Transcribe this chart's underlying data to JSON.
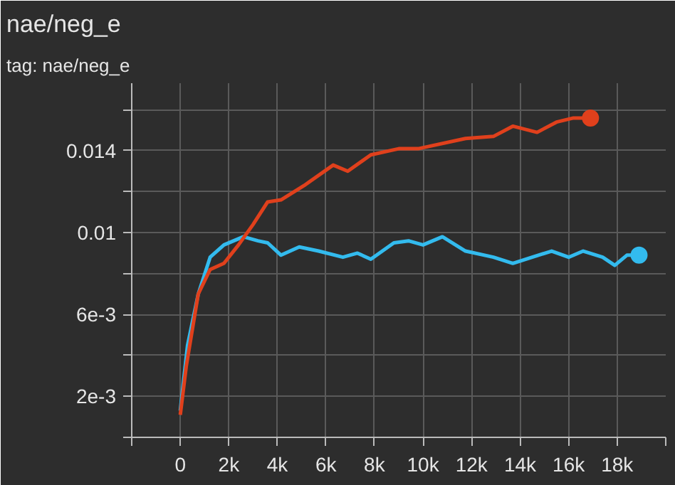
{
  "chart_data": {
    "type": "line",
    "title": "nae/neg_e",
    "subtitle": "tag: nae/neg_e",
    "xlim": [
      -2000,
      20000
    ],
    "xticks": [
      {
        "value": -2000,
        "label": null
      },
      {
        "value": 0,
        "label": "0"
      },
      {
        "value": 2000,
        "label": "2k"
      },
      {
        "value": 4000,
        "label": "4k"
      },
      {
        "value": 6000,
        "label": "6k"
      },
      {
        "value": 8000,
        "label": "8k"
      },
      {
        "value": 10000,
        "label": "10k"
      },
      {
        "value": 12000,
        "label": "12k"
      },
      {
        "value": 14000,
        "label": "14k"
      },
      {
        "value": 16000,
        "label": "16k"
      },
      {
        "value": 18000,
        "label": "18k"
      },
      {
        "value": 20000,
        "label": null
      }
    ],
    "ylim": [
      0,
      0.0173
    ],
    "yticks": [
      {
        "value": 0,
        "label": null
      },
      {
        "value": 0.002,
        "label": "2e-3"
      },
      {
        "value": 0.004,
        "label": null
      },
      {
        "value": 0.006,
        "label": "6e-3"
      },
      {
        "value": 0.008,
        "label": null
      },
      {
        "value": 0.01,
        "label": "0.01"
      },
      {
        "value": 0.012,
        "label": null
      },
      {
        "value": 0.014,
        "label": "0.014"
      },
      {
        "value": 0.016,
        "label": null
      }
    ],
    "grid": true,
    "marker": "none",
    "line_style": "solid",
    "series": [
      {
        "color": "#33bbee",
        "x": [
          0,
          300,
          740,
          1230,
          1800,
          2600,
          3200,
          3600,
          4150,
          4900,
          5700,
          6700,
          7300,
          7850,
          8800,
          9400,
          10000,
          10800,
          11750,
          12900,
          13700,
          14500,
          15300,
          16000,
          16600,
          17400,
          17900,
          18400,
          18900
        ],
        "values": [
          0.0013,
          0.0045,
          0.007,
          0.0088,
          0.0094,
          0.0098,
          0.0096,
          0.0095,
          0.0089,
          0.0093,
          0.0091,
          0.0088,
          0.009,
          0.0087,
          0.0095,
          0.0096,
          0.0094,
          0.0098,
          0.0091,
          0.0088,
          0.0085,
          0.0088,
          0.0091,
          0.0088,
          0.0091,
          0.0088,
          0.0084,
          0.0089,
          0.0089
        ]
      },
      {
        "color": "#e0401c",
        "x": [
          0,
          250,
          740,
          1230,
          1800,
          2400,
          3000,
          3600,
          4150,
          5100,
          6300,
          6900,
          7850,
          9000,
          9800,
          11750,
          12900,
          13700,
          14700,
          15500,
          16200,
          16900
        ],
        "values": [
          0.0011,
          0.0035,
          0.007,
          0.0082,
          0.0085,
          0.0094,
          0.0104,
          0.0115,
          0.0116,
          0.0123,
          0.0133,
          0.013,
          0.0138,
          0.0141,
          0.0141,
          0.0146,
          0.0147,
          0.0152,
          0.0149,
          0.0154,
          0.0156,
          0.0156
        ]
      }
    ]
  }
}
